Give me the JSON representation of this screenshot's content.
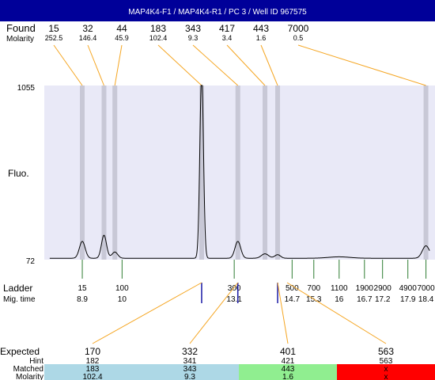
{
  "header": {
    "title": "MAP4K4-F1 / MAP4K4-R1 / PC 3 / Well ID 967575",
    "bg_color": "#000099"
  },
  "labels": {
    "found": "Found",
    "molarity": "Molarity",
    "fluo": "Fluo.",
    "ladder": "Ladder",
    "mig_time": "Mig. time",
    "expected": "Expected",
    "hint": "Hint",
    "matched": "Matched",
    "molarity_bottom": "Molarity"
  },
  "chart_data": {
    "type": "line",
    "y_axis": {
      "max_label": "1055",
      "min_label": "72",
      "max": 1055,
      "min": 72
    },
    "plot_bg": "#e9e9f7",
    "band_color": "#c8c8d6",
    "trace_color": "#000000",
    "found_peaks": [
      {
        "size": "15",
        "molarity": "252.5",
        "time": 8.9
      },
      {
        "size": "32",
        "molarity": "146.4",
        "time": 9.5
      },
      {
        "size": "44",
        "molarity": "45.9",
        "time": 9.8
      },
      {
        "size": "183",
        "molarity": "102.4",
        "time": 12.2
      },
      {
        "size": "343",
        "molarity": "9.3",
        "time": 13.2
      },
      {
        "size": "417",
        "molarity": "3.4",
        "time": 13.95
      },
      {
        "size": "443",
        "molarity": "1.6",
        "time": 14.3
      },
      {
        "size": "7000",
        "molarity": "0.5",
        "time": 18.4
      }
    ],
    "ladder": [
      {
        "size": "15",
        "time": "8.9",
        "t": 8.9
      },
      {
        "size": "100",
        "time": "10",
        "t": 10.0
      },
      {
        "size": "300",
        "time": "13.1",
        "t": 13.1
      },
      {
        "size": "500",
        "time": "14.7",
        "t": 14.7
      },
      {
        "size": "700",
        "time": "15.3",
        "t": 15.3
      },
      {
        "size": "1100",
        "time": "16",
        "t": 16.0
      },
      {
        "size": "1900",
        "time": "16.7",
        "t": 16.7
      },
      {
        "size": "2900",
        "time": "17.2",
        "t": 17.2
      },
      {
        "size": "4900",
        "time": "17.9",
        "t": 17.9
      },
      {
        "size": "7000",
        "time": "18.4",
        "t": 18.4
      }
    ],
    "trace_peaks": [
      {
        "t": 8.9,
        "h": 95,
        "w": 0.08
      },
      {
        "t": 9.5,
        "h": 130,
        "w": 0.07
      },
      {
        "t": 9.8,
        "h": 35,
        "w": 0.08
      },
      {
        "t": 12.2,
        "h": 1040,
        "w": 0.05
      },
      {
        "t": 13.2,
        "h": 95,
        "w": 0.08
      },
      {
        "t": 13.95,
        "h": 25,
        "w": 0.1
      },
      {
        "t": 14.3,
        "h": 20,
        "w": 0.08
      },
      {
        "t": 16.0,
        "h": 8,
        "w": 0.3
      },
      {
        "t": 18.4,
        "h": 70,
        "w": 0.1
      }
    ],
    "expected": [
      {
        "expected": "170",
        "hint": "182",
        "matched": "183",
        "molarity": "102.4",
        "color": "#add8e6",
        "t": 12.2
      },
      {
        "expected": "332",
        "hint": "341",
        "matched": "343",
        "molarity": "9.3",
        "color": "#add8e6",
        "t": 13.2
      },
      {
        "expected": "401",
        "hint": "421",
        "matched": "443",
        "molarity": "1.6",
        "color": "#90ee90",
        "t": 14.3
      },
      {
        "expected": "563",
        "hint": "563",
        "matched": "x",
        "molarity": "x",
        "color": "#ff0000",
        "t": null
      }
    ],
    "connector_color": "#f5a623",
    "ladder_tick_color": "#2e7d32",
    "match_tick_color": "#1a1aa6"
  }
}
